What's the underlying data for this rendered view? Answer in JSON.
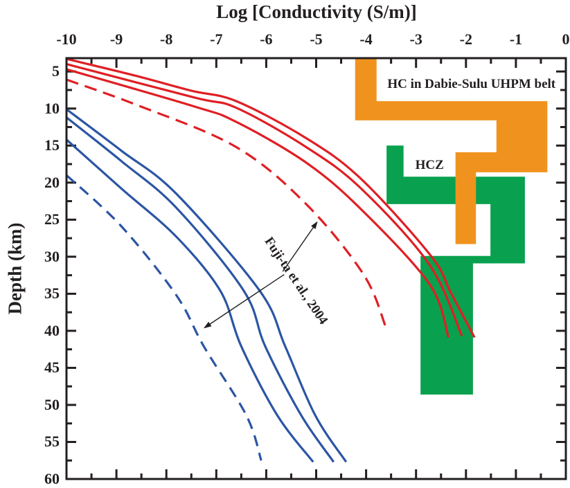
{
  "chart_data": {
    "type": "line",
    "title": "Log [Conductivity (S/m)]",
    "xlabel": "Log [Conductivity (S/m)]",
    "ylabel": "Depth (km)",
    "x_axis_position": "top",
    "y_inverted": true,
    "grid": false,
    "xlim": [
      -10,
      0
    ],
    "ylim": [
      3.2,
      60
    ],
    "x_ticks": [
      -10,
      -9,
      -8,
      -7,
      -6,
      -5,
      -4,
      -3,
      -2,
      -1,
      0
    ],
    "x_tick_labels": [
      "-10",
      "-9",
      "-8",
      "-7",
      "-6",
      "-5",
      "-4",
      "-3",
      "-2",
      "-1",
      "0"
    ],
    "x_minor_step": 0.5,
    "y_ticks": [
      5,
      10,
      15,
      20,
      25,
      30,
      35,
      40,
      45,
      50,
      55,
      60
    ],
    "y_tick_labels": [
      "5",
      "10",
      "15",
      "20",
      "25",
      "30",
      "35",
      "40",
      "45",
      "50",
      "55",
      "60"
    ],
    "y_minor_step": 2.5,
    "axis_color": "#231f20",
    "series": [
      {
        "name": "red-solid-upper",
        "color": "#df1f24",
        "dash": "solid",
        "points": [
          [
            -10,
            3.3
          ],
          [
            -8.6,
            5.6
          ],
          [
            -7.5,
            7.6
          ],
          [
            -6.6,
            9.0
          ],
          [
            -5.2,
            14.0
          ],
          [
            -4.1,
            19.5
          ],
          [
            -2.7,
            29.9
          ],
          [
            -2.3,
            34.9
          ],
          [
            -1.83,
            40.9
          ]
        ]
      },
      {
        "name": "red-solid-middle",
        "color": "#df1f24",
        "dash": "solid",
        "points": [
          [
            -10,
            4.0
          ],
          [
            -7.45,
            8.5
          ],
          [
            -6.6,
            9.9
          ],
          [
            -5.2,
            15.2
          ],
          [
            -4.1,
            20.8
          ],
          [
            -2.73,
            31.1
          ],
          [
            -2.08,
            40.7
          ]
        ]
      },
      {
        "name": "red-solid-lower",
        "color": "#df1f24",
        "dash": "solid",
        "points": [
          [
            -10,
            4.7
          ],
          [
            -7.45,
            9.7
          ],
          [
            -6.6,
            11.8
          ],
          [
            -5.2,
            17.3
          ],
          [
            -4.1,
            23.6
          ],
          [
            -2.73,
            33.7
          ],
          [
            -2.35,
            40.9
          ]
        ]
      },
      {
        "name": "red-dashed-fujita-2004",
        "color": "#df1f24",
        "dash": "dashed",
        "points": [
          [
            -10,
            6.1
          ],
          [
            -8.56,
            9.6
          ],
          [
            -6.6,
            15.2
          ],
          [
            -5.2,
            22.9
          ],
          [
            -4.05,
            32.4
          ],
          [
            -3.6,
            39.6
          ]
        ]
      },
      {
        "name": "blue-solid-upper",
        "color": "#2b55a4",
        "dash": "solid",
        "points": [
          [
            -10,
            10.1
          ],
          [
            -8.9,
            15.7
          ],
          [
            -7.8,
            21.5
          ],
          [
            -6.13,
            34.6
          ],
          [
            -5.62,
            42.1
          ],
          [
            -5.02,
            51.4
          ],
          [
            -4.4,
            57.7
          ]
        ]
      },
      {
        "name": "blue-solid-middle",
        "color": "#2b55a4",
        "dash": "solid",
        "points": [
          [
            -10,
            11.2
          ],
          [
            -8.9,
            17.1
          ],
          [
            -7.8,
            23.4
          ],
          [
            -6.45,
            34.6
          ],
          [
            -6.02,
            42.1
          ],
          [
            -5.3,
            51.4
          ],
          [
            -4.65,
            57.7
          ]
        ]
      },
      {
        "name": "blue-solid-lower",
        "color": "#2b55a4",
        "dash": "solid",
        "points": [
          [
            -10,
            14.2
          ],
          [
            -8.9,
            20.8
          ],
          [
            -7.8,
            27.3
          ],
          [
            -6.92,
            34.6
          ],
          [
            -6.5,
            42.1
          ],
          [
            -5.78,
            51.4
          ],
          [
            -5.06,
            57.7
          ]
        ]
      },
      {
        "name": "blue-dashed-fujita-2004",
        "color": "#2b55a4",
        "dash": "dashed",
        "points": [
          [
            -10,
            19.0
          ],
          [
            -8.9,
            25.9
          ],
          [
            -7.8,
            35.2
          ],
          [
            -7.25,
            42.1
          ],
          [
            -6.4,
            51.4
          ],
          [
            -6.1,
            57.5
          ]
        ]
      }
    ],
    "regions": [
      {
        "label": "HCZ",
        "color": "#09a14f",
        "label_anchor": [
          -2.73,
          17.7
        ],
        "polygon": [
          [
            -3.59,
            15.0
          ],
          [
            -3.25,
            15.0
          ],
          [
            -3.25,
            19.2
          ],
          [
            -0.82,
            19.2
          ],
          [
            -0.82,
            30.9
          ],
          [
            -1.86,
            30.9
          ],
          [
            -1.86,
            48.6
          ],
          [
            -2.91,
            48.6
          ],
          [
            -2.91,
            29.9
          ],
          [
            -1.51,
            29.9
          ],
          [
            -1.51,
            22.9
          ],
          [
            -3.59,
            22.9
          ]
        ]
      },
      {
        "label": "HC in Dabie-Sulu UHPM belt",
        "color": "#f0931e",
        "label_anchor": [
          -1.89,
          6.75
        ],
        "polygon": [
          [
            -4.22,
            3.2
          ],
          [
            -3.79,
            3.2
          ],
          [
            -3.79,
            9.0
          ],
          [
            -0.37,
            9.0
          ],
          [
            -0.37,
            18.6
          ],
          [
            -1.8,
            18.6
          ],
          [
            -1.8,
            28.3
          ],
          [
            -2.21,
            28.3
          ],
          [
            -2.21,
            15.9
          ],
          [
            -1.39,
            15.9
          ],
          [
            -1.39,
            11.6
          ],
          [
            -4.22,
            11.6
          ]
        ]
      }
    ],
    "annotation": {
      "text": "Fuji-ta et al., 2004",
      "anchor": [
        -5.41,
        33.3
      ],
      "rotation_deg": 56,
      "arrows": [
        {
          "from": [
            -5.67,
            32.0
          ],
          "to": [
            -4.98,
            25.3
          ]
        },
        {
          "from": [
            -5.64,
            32.4
          ],
          "to": [
            -7.24,
            39.6
          ]
        }
      ]
    }
  }
}
